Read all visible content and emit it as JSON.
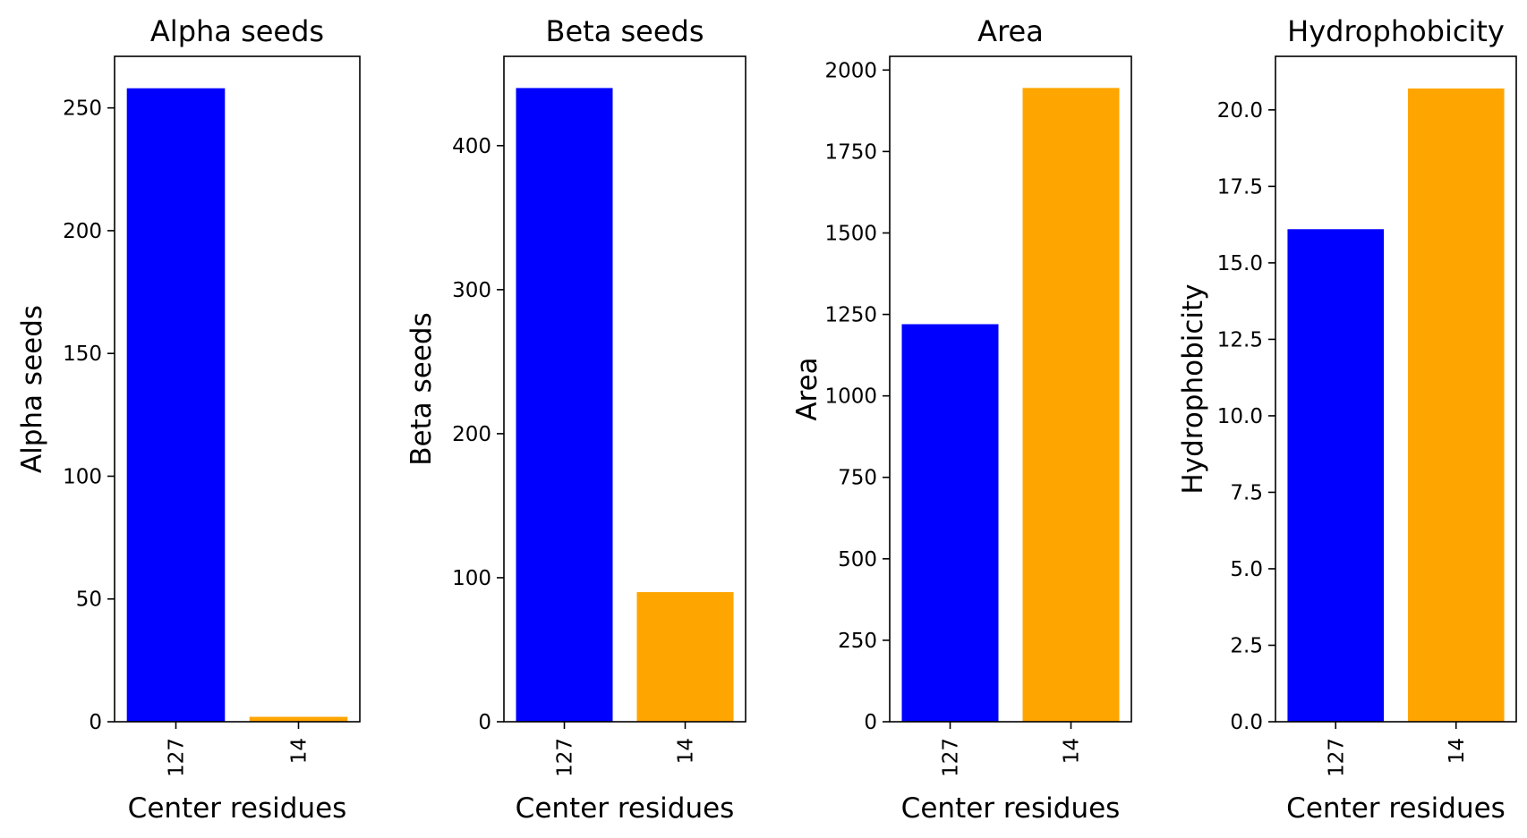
{
  "chart_data": [
    {
      "type": "bar",
      "title": "Alpha seeds",
      "xlabel": "Center residues",
      "ylabel": "Alpha seeds",
      "categories": [
        "127",
        "14"
      ],
      "values": [
        258,
        2
      ],
      "bar_colors": [
        "#0000ff",
        "#ffa500"
      ],
      "ylim": [
        0,
        271
      ],
      "yticks": [
        0,
        50,
        100,
        150,
        200,
        250
      ],
      "grid": false
    },
    {
      "type": "bar",
      "title": "Beta seeds",
      "xlabel": "Center residues",
      "ylabel": "Beta seeds",
      "categories": [
        "127",
        "14"
      ],
      "values": [
        440,
        90
      ],
      "bar_colors": [
        "#0000ff",
        "#ffa500"
      ],
      "ylim": [
        0,
        462
      ],
      "yticks": [
        0,
        100,
        200,
        300,
        400
      ],
      "grid": false
    },
    {
      "type": "bar",
      "title": "Area",
      "xlabel": "Center residues",
      "ylabel": "Area",
      "categories": [
        "127",
        "14"
      ],
      "values": [
        1220,
        1945
      ],
      "bar_colors": [
        "#0000ff",
        "#ffa500"
      ],
      "ylim": [
        0,
        2042
      ],
      "yticks": [
        0,
        250,
        500,
        750,
        1000,
        1250,
        1500,
        1750,
        2000
      ],
      "grid": false
    },
    {
      "type": "bar",
      "title": "Hydrophobicity",
      "xlabel": "Center residues",
      "ylabel": "Hydrophobicity",
      "categories": [
        "127",
        "14"
      ],
      "values": [
        16.1,
        20.7
      ],
      "bar_colors": [
        "#0000ff",
        "#ffa500"
      ],
      "ylim": [
        0,
        21.75
      ],
      "yticks": [
        "0.0",
        "2.5",
        "5.0",
        "7.5",
        "10.0",
        "12.5",
        "15.0",
        "17.5",
        "20.0"
      ],
      "grid": false
    }
  ]
}
